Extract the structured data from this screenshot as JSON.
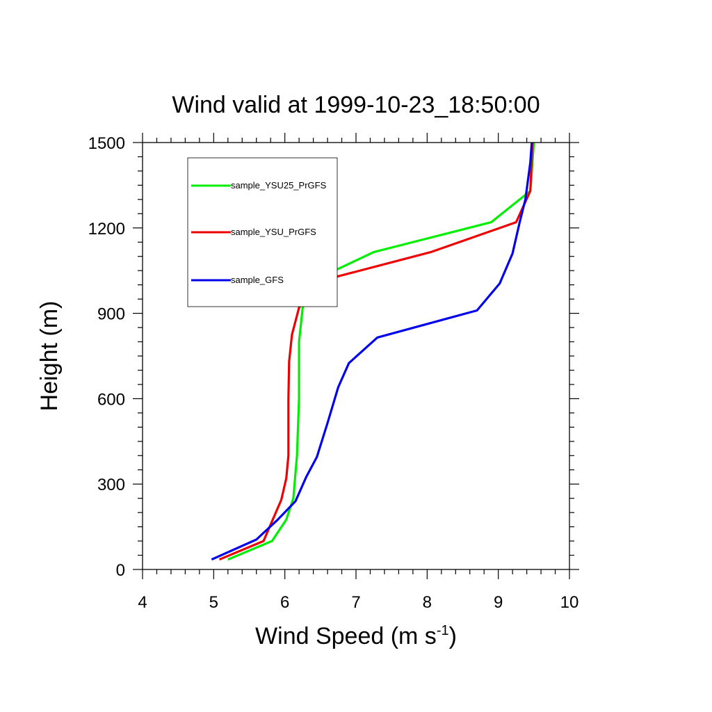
{
  "chart_data": {
    "type": "line",
    "title": "Wind valid at 1999-10-23_18:50:00",
    "xlabel": "Wind Speed (m s",
    "xlabel_sup": "-1",
    "xlabel_close": ")",
    "ylabel": "Height (m)",
    "xlim": [
      4,
      10
    ],
    "ylim": [
      0,
      1500
    ],
    "xticks": [
      4,
      5,
      6,
      7,
      8,
      9,
      10
    ],
    "yticks": [
      0,
      300,
      600,
      900,
      1200,
      1500
    ],
    "grid": false,
    "legend_position": "top-left",
    "series": [
      {
        "name": "sample_YSU25_PrGFS",
        "color": "#00ee00",
        "points": [
          [
            5.2,
            35
          ],
          [
            5.82,
            100
          ],
          [
            6.02,
            175
          ],
          [
            6.12,
            250
          ],
          [
            6.17,
            400
          ],
          [
            6.2,
            600
          ],
          [
            6.2,
            800
          ],
          [
            6.25,
            920
          ],
          [
            6.4,
            1015
          ],
          [
            7.25,
            1115
          ],
          [
            8.9,
            1220
          ],
          [
            9.45,
            1330
          ],
          [
            9.5,
            1500
          ]
        ]
      },
      {
        "name": "sample_YSU_PrGFS",
        "color": "#ee0000",
        "points": [
          [
            5.08,
            35
          ],
          [
            5.7,
            100
          ],
          [
            5.95,
            245
          ],
          [
            6.02,
            320
          ],
          [
            6.05,
            400
          ],
          [
            6.05,
            600
          ],
          [
            6.06,
            730
          ],
          [
            6.1,
            825
          ],
          [
            6.2,
            920
          ],
          [
            6.52,
            1015
          ],
          [
            8.05,
            1115
          ],
          [
            9.25,
            1220
          ],
          [
            9.45,
            1330
          ],
          [
            9.48,
            1500
          ]
        ]
      },
      {
        "name": "sample_GFS",
        "color": "#0000ee",
        "points": [
          [
            4.97,
            35
          ],
          [
            5.6,
            105
          ],
          [
            5.9,
            175
          ],
          [
            6.15,
            240
          ],
          [
            6.3,
            325
          ],
          [
            6.45,
            395
          ],
          [
            6.6,
            515
          ],
          [
            6.75,
            640
          ],
          [
            6.9,
            725
          ],
          [
            7.3,
            815
          ],
          [
            8.7,
            910
          ],
          [
            9.02,
            1005
          ],
          [
            9.2,
            1110
          ],
          [
            9.3,
            1220
          ],
          [
            9.38,
            1300
          ],
          [
            9.45,
            1430
          ],
          [
            9.47,
            1500
          ]
        ]
      }
    ]
  }
}
